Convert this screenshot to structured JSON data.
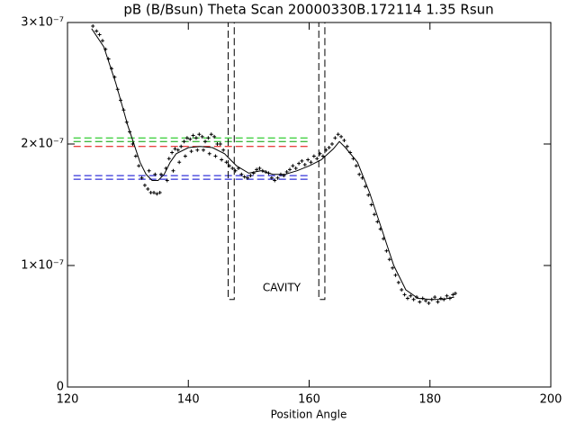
{
  "chart_data": {
    "type": "scatter",
    "title": "pB (B/Bsun) Theta Scan 20000330B.172114 1.35 Rsun",
    "xlabel": "Position Angle",
    "annotation": "CAVITY",
    "annotation_color": "#e00000",
    "xlim": [
      120,
      200
    ],
    "ylim": [
      0,
      3e-07
    ],
    "xticks": [
      120,
      140,
      160,
      180,
      200
    ],
    "yticks": [
      0,
      {
        "value": 1e-07,
        "label": "1×10⁻⁷"
      },
      {
        "value": 2e-07,
        "label": "2×10⁻⁷"
      },
      {
        "value": 3e-07,
        "label": "3×10⁻⁷"
      }
    ],
    "points": {
      "color": "#000000",
      "x": [
        124.2,
        124.8,
        125.3,
        125.8,
        126.3,
        126.8,
        127.3,
        127.8,
        128.3,
        128.8,
        129.3,
        129.8,
        130.3,
        130.8,
        131.3,
        131.8,
        132.3,
        132.8,
        133.3,
        133.8,
        134.3,
        134.8,
        135.3,
        133.5,
        134.5,
        135.5,
        136.3,
        136.8,
        137.3,
        137.8,
        138.3,
        138.8,
        139.3,
        139.8,
        140.3,
        140.8,
        141.3,
        141.8,
        142.3,
        142.8,
        143.3,
        143.8,
        144.3,
        144.8,
        145.3,
        145.8,
        136.5,
        137.5,
        138.5,
        139.5,
        140.5,
        141.5,
        142.5,
        143.5,
        144.5,
        145.5,
        146.3,
        146.8,
        147.3,
        147.8,
        148.3,
        148.8,
        149.3,
        149.8,
        150.3,
        150.8,
        151.3,
        151.8,
        152.3,
        152.8,
        153.3,
        153.8,
        154.3,
        154.8,
        155.3,
        155.8,
        156.3,
        156.8,
        157.3,
        157.8,
        158.3,
        158.8,
        159.3,
        159.8,
        160.3,
        160.8,
        161.3,
        161.8,
        162.3,
        162.8,
        163.3,
        163.8,
        164.3,
        164.8,
        165.3,
        165.8,
        166.3,
        166.8,
        167.3,
        167.8,
        168.3,
        168.8,
        169.3,
        169.8,
        170.3,
        170.8,
        171.3,
        171.8,
        172.3,
        172.8,
        173.3,
        173.8,
        174.3,
        174.8,
        175.3,
        175.8,
        176.3,
        176.8,
        177.3,
        177.8,
        178.3,
        178.8,
        179.3,
        179.8,
        180.3,
        180.8,
        181.3,
        181.8,
        182.3,
        182.8,
        183.3,
        183.8,
        184.2
      ],
      "y": [
        2.97e-07,
        2.93e-07,
        2.9e-07,
        2.85e-07,
        2.78e-07,
        2.7e-07,
        2.62e-07,
        2.55e-07,
        2.45e-07,
        2.36e-07,
        2.28e-07,
        2.18e-07,
        2.1e-07,
        2e-07,
        1.9e-07,
        1.82e-07,
        1.72e-07,
        1.66e-07,
        1.63e-07,
        1.6e-07,
        1.6e-07,
        1.59e-07,
        1.6e-07,
        1.78e-07,
        1.75e-07,
        1.75e-07,
        1.8e-07,
        1.88e-07,
        1.93e-07,
        1.96e-07,
        1.95e-07,
        1.98e-07,
        2.02e-07,
        2.05e-07,
        2.04e-07,
        2.07e-07,
        2.05e-07,
        2.08e-07,
        2.06e-07,
        2.02e-07,
        2.05e-07,
        2.08e-07,
        2.06e-07,
        2e-07,
        2e-07,
        1.95e-07,
        1.7e-07,
        1.78e-07,
        1.85e-07,
        1.9e-07,
        1.94e-07,
        1.95e-07,
        1.95e-07,
        1.92e-07,
        1.9e-07,
        1.87e-07,
        1.85e-07,
        1.82e-07,
        1.8e-07,
        1.78e-07,
        1.8e-07,
        1.75e-07,
        1.73e-07,
        1.72e-07,
        1.74e-07,
        1.76e-07,
        1.79e-07,
        1.8e-07,
        1.78e-07,
        1.77e-07,
        1.76e-07,
        1.72e-07,
        1.7e-07,
        1.72e-07,
        1.75e-07,
        1.74e-07,
        1.77e-07,
        1.79e-07,
        1.82e-07,
        1.8e-07,
        1.84e-07,
        1.86e-07,
        1.83e-07,
        1.87e-07,
        1.85e-07,
        1.9e-07,
        1.88e-07,
        1.92e-07,
        1.9e-07,
        1.95e-07,
        1.97e-07,
        2e-07,
        2.05e-07,
        2.08e-07,
        2.06e-07,
        2.03e-07,
        1.98e-07,
        1.93e-07,
        1.88e-07,
        1.82e-07,
        1.75e-07,
        1.72e-07,
        1.65e-07,
        1.58e-07,
        1.5e-07,
        1.42e-07,
        1.36e-07,
        1.3e-07,
        1.22e-07,
        1.12e-07,
        1.05e-07,
        9.8e-08,
        9.2e-08,
        8.6e-08,
        8e-08,
        7.6e-08,
        7.3e-08,
        7.5e-08,
        7.2e-08,
        7.4e-08,
        7e-08,
        7.3e-08,
        7.1e-08,
        6.9e-08,
        7.2e-08,
        7.4e-08,
        7e-08,
        7.3e-08,
        7.2e-08,
        7.5e-08,
        7.3e-08,
        7.6e-08,
        7.7e-08
      ]
    },
    "fit": {
      "color": "#000000",
      "x": [
        124,
        126,
        128,
        130,
        132,
        133,
        134,
        135,
        136,
        137,
        138,
        140,
        142,
        144,
        146,
        147,
        148,
        150,
        152,
        154,
        156,
        158,
        160,
        162,
        164,
        165,
        166,
        168,
        170,
        172,
        174,
        176,
        178,
        180,
        182,
        184
      ],
      "y": [
        2.95e-07,
        2.8e-07,
        2.5e-07,
        2.15e-07,
        1.85e-07,
        1.75e-07,
        1.7e-07,
        1.7e-07,
        1.75e-07,
        1.85e-07,
        1.92e-07,
        1.97e-07,
        1.98e-07,
        1.97e-07,
        1.92e-07,
        1.87e-07,
        1.82e-07,
        1.76e-07,
        1.78e-07,
        1.75e-07,
        1.75e-07,
        1.78e-07,
        1.82e-07,
        1.87e-07,
        1.96e-07,
        2.02e-07,
        1.97e-07,
        1.85e-07,
        1.6e-07,
        1.3e-07,
        1e-07,
        8e-08,
        7.3e-08,
        7.2e-08,
        7.2e-08,
        7.4e-08
      ]
    },
    "hlines": [
      {
        "value": 2.05e-07,
        "color": "#00c000"
      },
      {
        "value": 2.02e-07,
        "color": "#00a000"
      },
      {
        "value": 1.98e-07,
        "color": "#e00000"
      },
      {
        "value": 1.74e-07,
        "color": "#0000d0"
      },
      {
        "value": 1.71e-07,
        "color": "#0000d0"
      }
    ],
    "regions": [
      {
        "x0": 146.6,
        "x1": 147.6,
        "y0": 7.2e-08,
        "y1": 3e-07
      },
      {
        "x0": 161.6,
        "x1": 162.6,
        "y0": 7.2e-08,
        "y1": 3e-07
      }
    ]
  }
}
